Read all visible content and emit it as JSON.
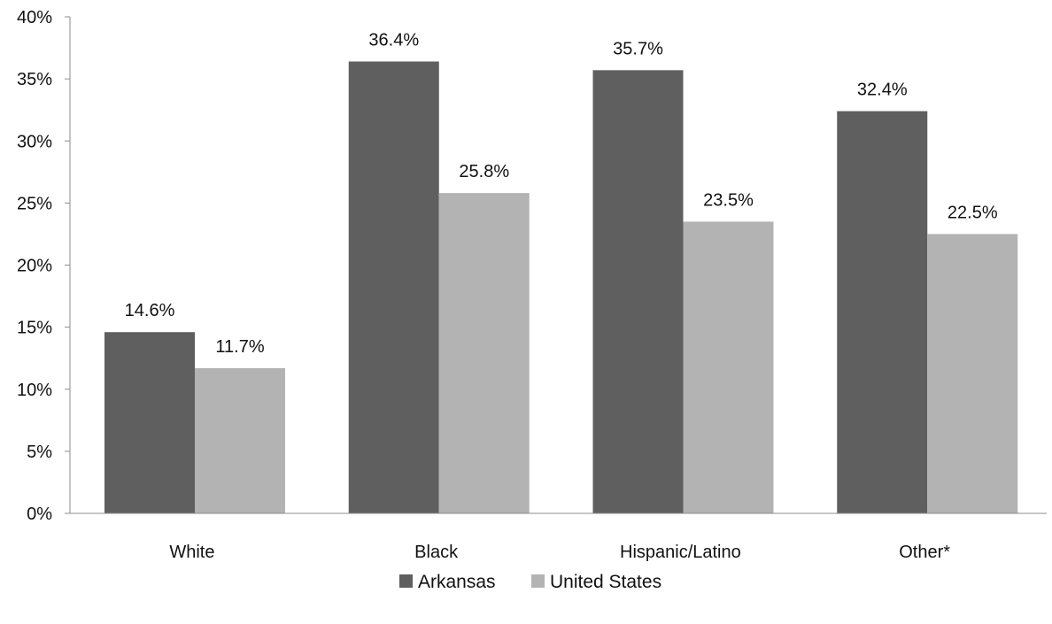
{
  "chart_data": {
    "type": "bar",
    "categories": [
      "White",
      "Black",
      "Hispanic/Latino",
      "Other*"
    ],
    "series": [
      {
        "name": "Arkansas",
        "values": [
          14.6,
          36.4,
          35.7,
          32.4
        ],
        "color": "#5f5f5f"
      },
      {
        "name": "United States",
        "values": [
          11.7,
          25.8,
          23.5,
          22.5
        ],
        "color": "#b3b3b3"
      }
    ],
    "value_suffix": "%",
    "ylim": [
      0,
      40
    ],
    "yticks": [
      0,
      5,
      10,
      15,
      20,
      25,
      30,
      35,
      40
    ],
    "grid": false,
    "legend": "bottom-center"
  }
}
